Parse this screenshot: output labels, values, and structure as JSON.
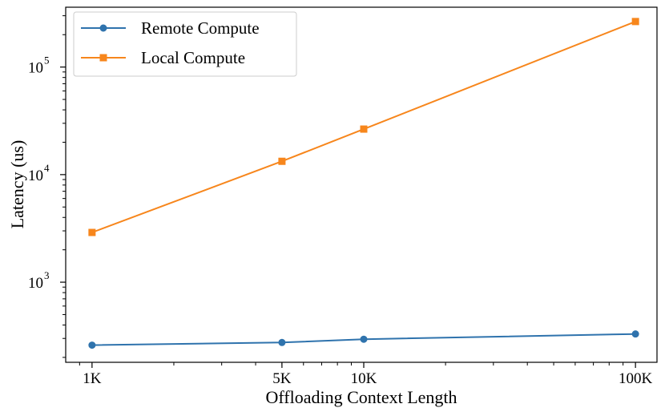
{
  "chart_data": {
    "type": "line",
    "xlabel": "Offloading Context Length",
    "ylabel": "Latency (us)",
    "xscale": "log",
    "yscale": "log",
    "x": [
      1000,
      5000,
      10000,
      100000
    ],
    "xticks": [
      {
        "value": 1000,
        "label": "1K"
      },
      {
        "value": 5000,
        "label": "5K"
      },
      {
        "value": 10000,
        "label": "10K"
      },
      {
        "value": 100000,
        "label": "100K"
      }
    ],
    "yticks": [
      {
        "value": 1000,
        "base": "10",
        "exp": "3"
      },
      {
        "value": 10000,
        "base": "10",
        "exp": "4"
      },
      {
        "value": 100000,
        "base": "10",
        "exp": "5"
      }
    ],
    "xlim": [
      800,
      120000
    ],
    "ylim": [
      180,
      360000
    ],
    "legend_position": "top-left",
    "series": [
      {
        "name": "Remote Compute",
        "color": "#2f73ad",
        "marker": "circle",
        "values": [
          260,
          275,
          295,
          330
        ]
      },
      {
        "name": "Local Compute",
        "color": "#f7861c",
        "marker": "square",
        "values": [
          2900,
          13300,
          26500,
          265000
        ]
      }
    ]
  }
}
